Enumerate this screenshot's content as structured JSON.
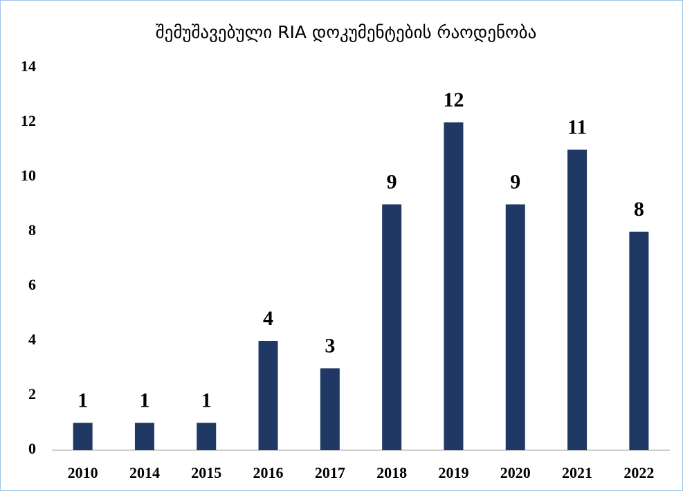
{
  "chart_data": {
    "type": "bar",
    "title": "შემუშავებული RIA დოკუმენტების რაოდენობა",
    "categories": [
      "2010",
      "2014",
      "2015",
      "2016",
      "2017",
      "2018",
      "2019",
      "2020",
      "2021",
      "2022"
    ],
    "values": [
      1,
      1,
      1,
      4,
      3,
      9,
      12,
      9,
      11,
      8
    ],
    "color": "#203864",
    "ylim": [
      0,
      14
    ],
    "yticks": [
      0,
      2,
      4,
      6,
      8,
      10,
      12,
      14
    ],
    "grid": false
  }
}
